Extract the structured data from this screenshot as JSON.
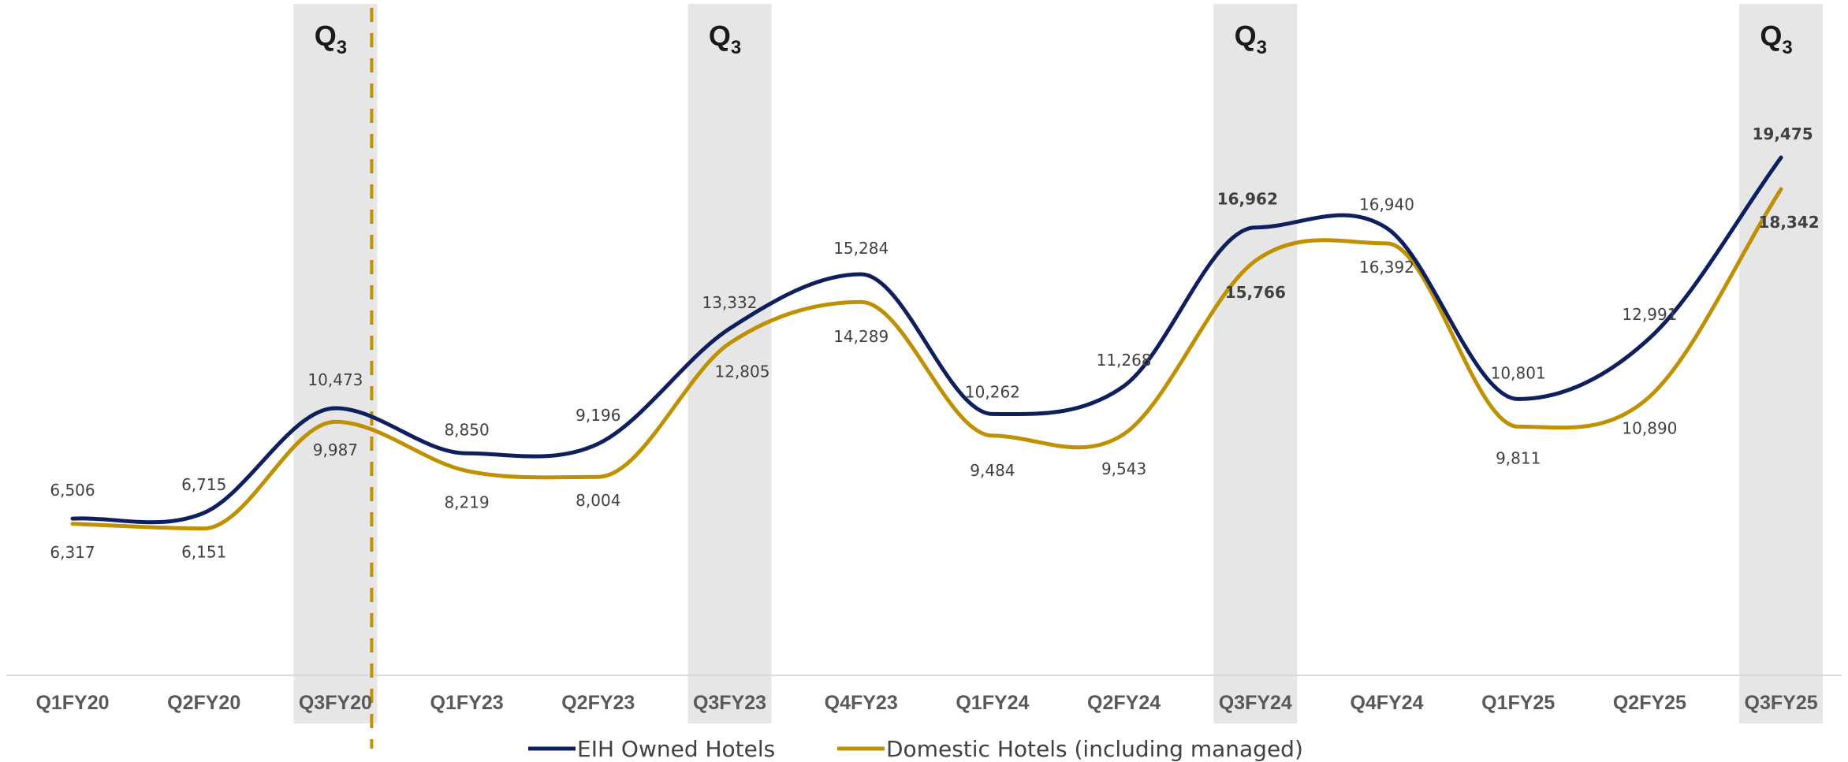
{
  "chart_data": {
    "type": "line",
    "categories": [
      "Q1FY20",
      "Q2FY20",
      "Q3FY20",
      "Q1FY23",
      "Q2FY23",
      "Q3FY23",
      "Q4FY23",
      "Q1FY24",
      "Q2FY24",
      "Q3FY24",
      "Q4FY24",
      "Q1FY25",
      "Q2FY25",
      "Q3FY25"
    ],
    "series": [
      {
        "name": "EIH Owned Hotels",
        "color": "#0d1f5c",
        "values": [
          6506,
          6715,
          10473,
          8850,
          9196,
          13332,
          15284,
          10262,
          11268,
          16962,
          16940,
          10801,
          12991,
          19475
        ],
        "labels": [
          "6,506",
          "6,715",
          "10,473",
          "8,850",
          "9,196",
          "13,332",
          "15,284",
          "10,262",
          "11,268",
          "16,962",
          "16,940",
          "10,801",
          "12,991",
          "19,475"
        ]
      },
      {
        "name": "Domestic Hotels (including managed)",
        "color": "#bf9000",
        "values": [
          6317,
          6151,
          9987,
          8219,
          8004,
          12805,
          14289,
          9484,
          9543,
          15766,
          16392,
          9811,
          10890,
          18342
        ],
        "labels": [
          "6,317",
          "6,151",
          "9,987",
          "8,219",
          "8,004",
          "12,805",
          "14,289",
          "9,484",
          "9,543",
          "15,766",
          "16,392",
          "9,811",
          "10,890",
          "18,342"
        ]
      }
    ],
    "highlight_columns": [
      2,
      5,
      9,
      13
    ],
    "highlight_label": {
      "main": "Q",
      "sub": "3"
    },
    "divider_after_category": 2,
    "legend_position": "bottom",
    "grid": false
  }
}
